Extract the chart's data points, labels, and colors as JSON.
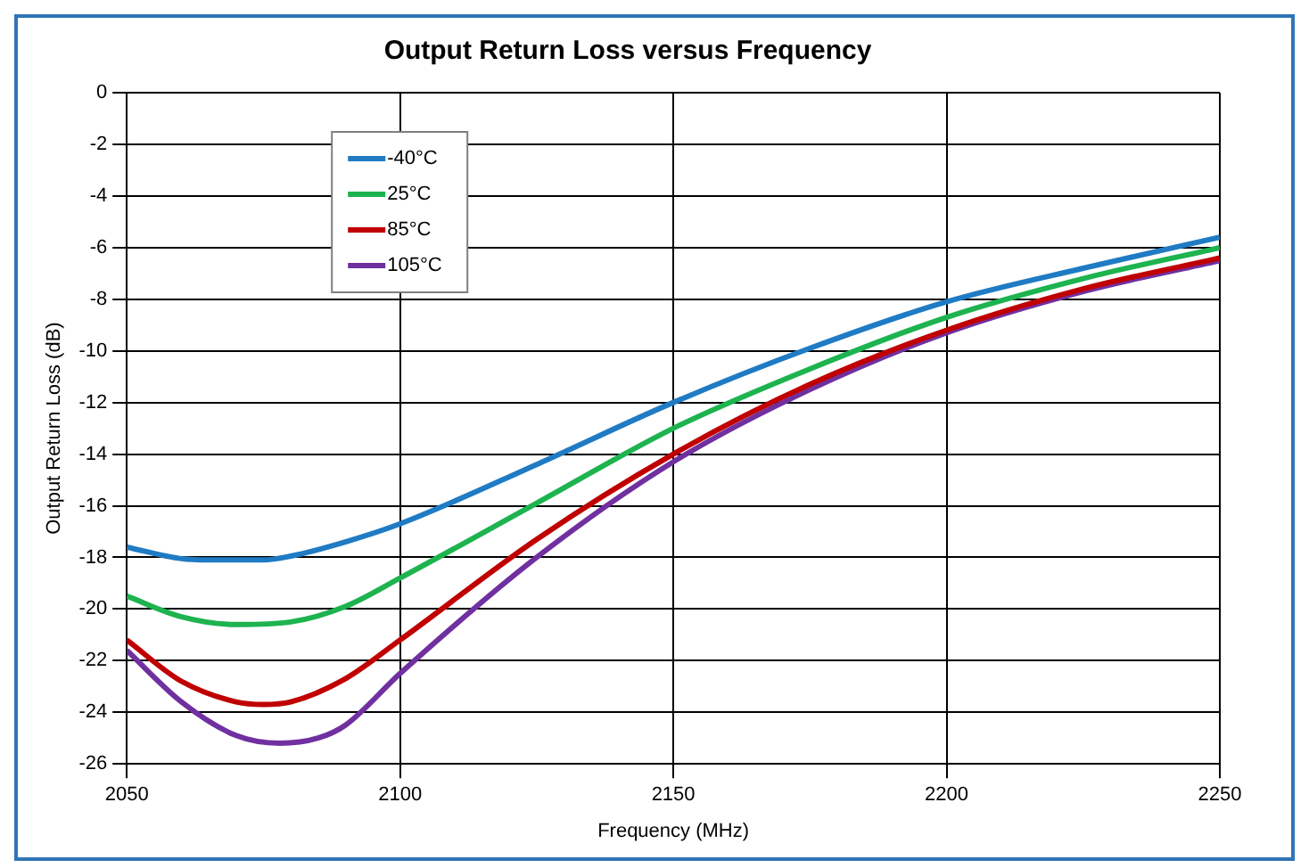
{
  "chart_data": {
    "type": "line",
    "title": "Output Return Loss versus Frequency",
    "xlabel": "Frequency (MHz)",
    "ylabel": "Output Return Loss (dB)",
    "xlim": [
      2050,
      2250
    ],
    "xticks": [
      2050,
      2100,
      2150,
      2200,
      2250
    ],
    "ylim": [
      -26,
      0
    ],
    "yticks": [
      -26,
      -24,
      -22,
      -20,
      -18,
      -16,
      -14,
      -12,
      -10,
      -8,
      -6,
      -4,
      -2,
      0
    ],
    "grid": true,
    "legend": "top left",
    "marker": "none",
    "line_style": "solid",
    "series": [
      {
        "name": "-40°C",
        "color": "#1f7bc4",
        "x": [
          2050,
          2060,
          2065,
          2075,
          2080,
          2090,
          2100,
          2125,
          2150,
          2175,
          2200,
          2225,
          2250
        ],
        "values": [
          -17.6,
          -18.05,
          -18.1,
          -18.1,
          -17.95,
          -17.4,
          -16.7,
          -14.4,
          -12.0,
          -9.9,
          -8.1,
          -6.8,
          -5.6
        ]
      },
      {
        "name": "25°C",
        "color": "#1db34f",
        "x": [
          2050,
          2060,
          2070,
          2080,
          2090,
          2100,
          2125,
          2150,
          2175,
          2200,
          2225,
          2250
        ],
        "values": [
          -19.5,
          -20.3,
          -20.6,
          -20.5,
          -19.9,
          -18.8,
          -15.9,
          -13.0,
          -10.7,
          -8.7,
          -7.2,
          -6.0
        ]
      },
      {
        "name": "85°C",
        "color": "#c00000",
        "x": [
          2050,
          2060,
          2070,
          2075,
          2080,
          2090,
          2100,
          2125,
          2150,
          2175,
          2200,
          2225,
          2250
        ],
        "values": [
          -21.2,
          -22.8,
          -23.6,
          -23.7,
          -23.6,
          -22.7,
          -21.2,
          -17.3,
          -14.0,
          -11.3,
          -9.2,
          -7.6,
          -6.4
        ]
      },
      {
        "name": "105°C",
        "color": "#7030a0",
        "x": [
          2050,
          2060,
          2070,
          2078,
          2085,
          2090,
          2100,
          2125,
          2150,
          2175,
          2200,
          2225,
          2250
        ],
        "values": [
          -21.6,
          -23.6,
          -24.9,
          -25.2,
          -25.0,
          -24.5,
          -22.5,
          -18.0,
          -14.3,
          -11.5,
          -9.3,
          -7.7,
          -6.5
        ]
      }
    ]
  }
}
